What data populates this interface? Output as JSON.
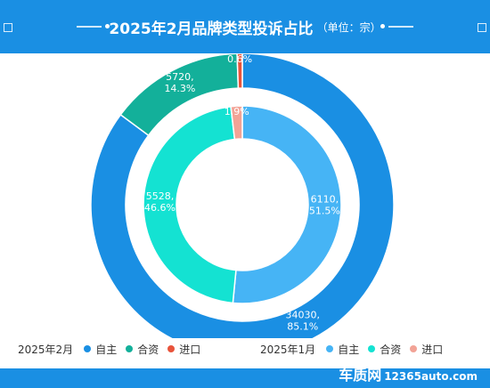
{
  "header": {
    "title": "2025年2月品牌类型投诉占比",
    "unit": "（单位：宗）"
  },
  "chart_data": {
    "type": "pie",
    "title": "2025年2月品牌类型投诉占比",
    "subtitle": "（单位：宗）",
    "series": [
      {
        "name": "2025年2月",
        "ring": "outer",
        "categories": [
          "自主",
          "合资",
          "进口"
        ],
        "values": [
          34030,
          5720,
          221
        ],
        "labels": [
          "85.1%",
          "14.3%",
          "0.6%"
        ],
        "colors": [
          "#1a8fe3",
          "#13b09a",
          "#e8533b"
        ]
      },
      {
        "name": "2025年1月",
        "ring": "inner",
        "categories": [
          "自主",
          "合资",
          "进口"
        ],
        "values": [
          6110,
          5528,
          220
        ],
        "labels": [
          "51.5%",
          "46.6%",
          "1.9%"
        ],
        "colors": [
          "#46b4f5",
          "#14e2d2",
          "#f2a396"
        ]
      }
    ],
    "legend_position": "bottom"
  },
  "legend": {
    "groups": [
      {
        "period": "2025年2月",
        "items": [
          {
            "label": "自主",
            "color": "#1a8fe3"
          },
          {
            "label": "合资",
            "color": "#13b09a"
          },
          {
            "label": "进口",
            "color": "#e8533b"
          }
        ]
      },
      {
        "period": "2025年1月",
        "items": [
          {
            "label": "自主",
            "color": "#46b4f5"
          },
          {
            "label": "合资",
            "color": "#14e2d2"
          },
          {
            "label": "进口",
            "color": "#f2a396"
          }
        ]
      }
    ]
  },
  "brand": {
    "name": "车质网",
    "domain": "12365auto.com"
  }
}
